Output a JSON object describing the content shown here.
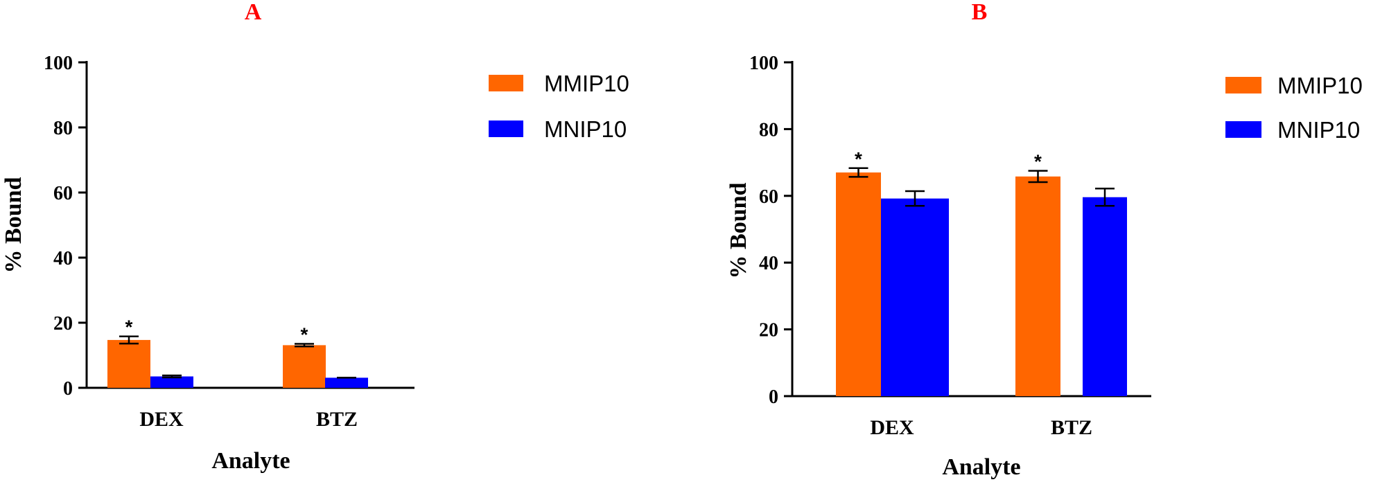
{
  "chart_data": [
    {
      "type": "bar",
      "title": "A",
      "title_color": "#ff0000",
      "xlabel": "Analyte",
      "ylabel": "% Bound",
      "ylim": [
        0,
        100
      ],
      "yticks": [
        "0",
        "20",
        "40",
        "60",
        "80",
        "100"
      ],
      "categories": [
        "DEX",
        "BTZ"
      ],
      "series": [
        {
          "name": "MMIP10",
          "color": "#ff6600",
          "values": [
            14.7,
            13.1
          ],
          "errors": [
            1.1,
            0.4
          ],
          "annotations": [
            "*",
            "*"
          ]
        },
        {
          "name": "MNIP10",
          "color": "#0000ff",
          "values": [
            3.5,
            3.1
          ],
          "errors": [
            0.3,
            0.0
          ],
          "annotations": [
            "",
            ""
          ]
        }
      ],
      "legend_position": "right"
    },
    {
      "type": "bar",
      "title": "B",
      "title_color": "#ff0000",
      "xlabel": "Analyte",
      "ylabel": "% Bound",
      "ylim": [
        0,
        100
      ],
      "yticks": [
        "0",
        "20",
        "40",
        "60",
        "80",
        "100"
      ],
      "categories": [
        "DEX",
        "BTZ"
      ],
      "series": [
        {
          "name": "MMIP10",
          "color": "#ff6600",
          "values": [
            67.0,
            65.8
          ],
          "errors": [
            1.3,
            1.7
          ],
          "annotations": [
            "*",
            "*"
          ]
        },
        {
          "name": "MNIP10",
          "color": "#0000ff",
          "values": [
            59.2,
            59.6
          ],
          "errors": [
            2.2,
            2.6
          ],
          "annotations": [
            "",
            ""
          ]
        }
      ],
      "legend_position": "right"
    }
  ]
}
